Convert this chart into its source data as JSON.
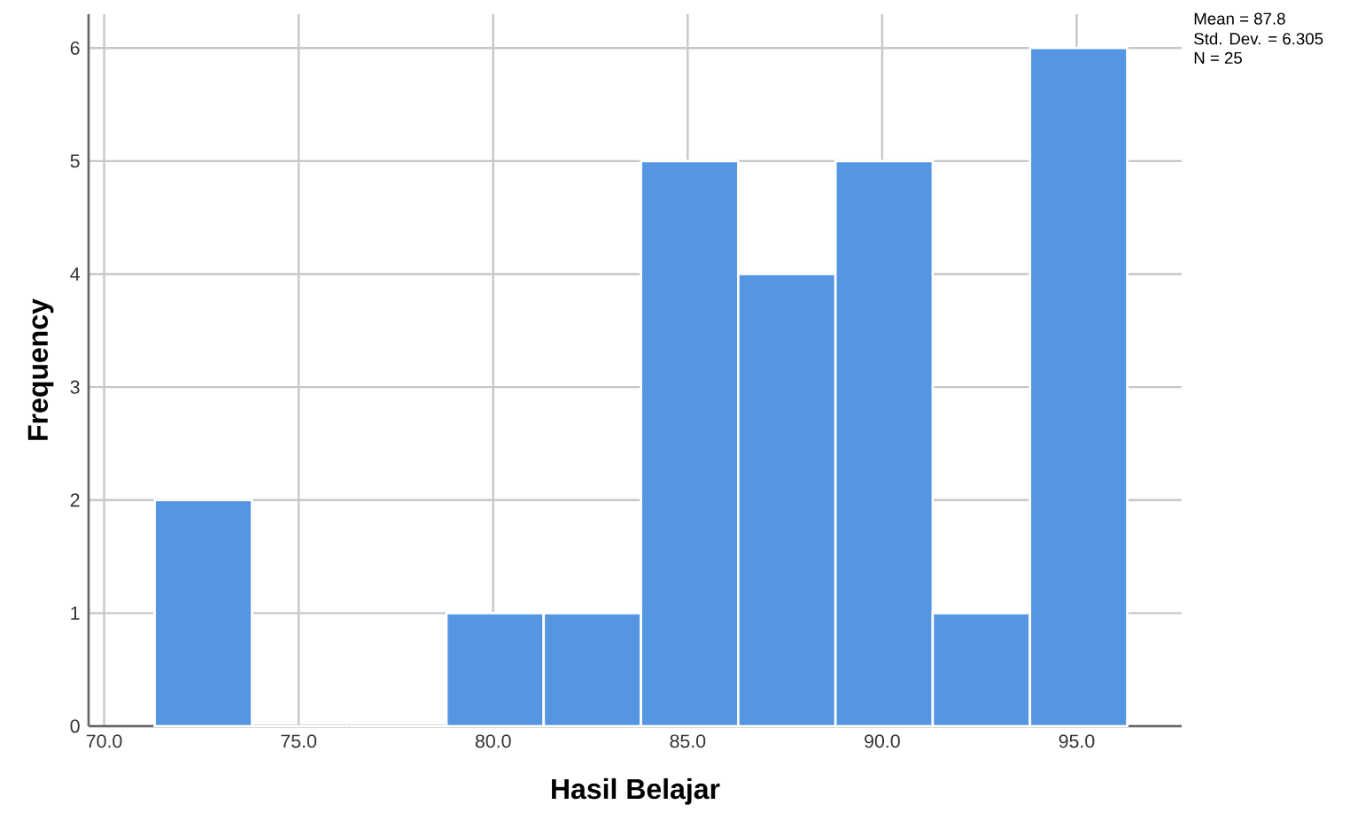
{
  "chart_data": {
    "type": "histogram",
    "xlabel": "Hasil Belajar",
    "ylabel": "Frequency",
    "bins": [
      71.3,
      73.8,
      76.3,
      78.8,
      81.3,
      83.8,
      86.3,
      88.8,
      91.3,
      93.8,
      96.3
    ],
    "values": [
      2,
      0,
      0,
      1,
      1,
      5,
      4,
      5,
      1,
      6
    ],
    "color": "#5596e3",
    "xlim": [
      69.6,
      97.7
    ],
    "ylim": [
      0,
      6.3
    ],
    "xticks": [
      {
        "value": 70,
        "label": "70.0"
      },
      {
        "value": 75,
        "label": "75.0"
      },
      {
        "value": 80,
        "label": "80.0"
      },
      {
        "value": 85,
        "label": "85.0"
      },
      {
        "value": 90,
        "label": "90.0"
      },
      {
        "value": 95,
        "label": "95.0"
      }
    ],
    "yticks": [
      0,
      1,
      2,
      3,
      4,
      5,
      6
    ],
    "grid": true,
    "annotations": [
      "Mean = 87.8",
      "Std. Dev. = 6.305",
      "N = 25"
    ]
  }
}
